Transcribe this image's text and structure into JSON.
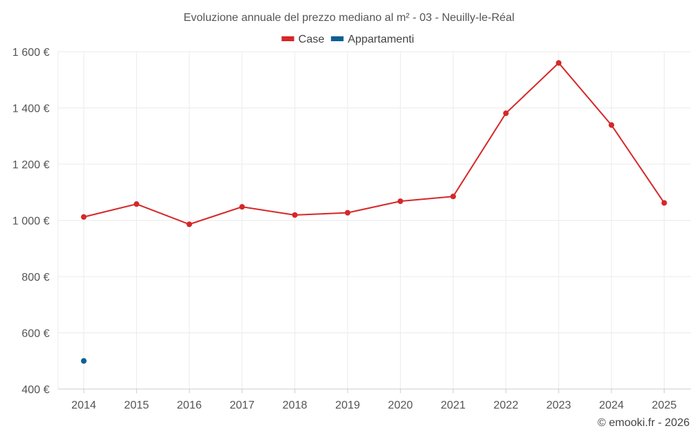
{
  "chart_data": {
    "type": "line",
    "title": "Evoluzione annuale del prezzo mediano al m² - 03 - Neuilly-le-Réal",
    "xlabel": "",
    "ylabel": "",
    "categories": [
      "2014",
      "2015",
      "2016",
      "2017",
      "2018",
      "2019",
      "2020",
      "2021",
      "2022",
      "2023",
      "2024",
      "2025"
    ],
    "ylim": [
      400,
      1600
    ],
    "yticks": [
      400,
      600,
      800,
      1000,
      1200,
      1400,
      1600
    ],
    "ytick_labels": [
      "400 €",
      "600 €",
      "800 €",
      "1 000 €",
      "1 200 €",
      "1 400 €",
      "1 600 €"
    ],
    "grid": true,
    "legend_position": "top-center",
    "series": [
      {
        "name": "Case",
        "color": "#d62728",
        "values": [
          1012,
          1058,
          986,
          1048,
          1019,
          1027,
          1068,
          1085,
          1381,
          1560,
          1339,
          1062
        ]
      },
      {
        "name": "Appartamenti",
        "color": "#0b5f96",
        "values": [
          500,
          null,
          null,
          null,
          null,
          null,
          null,
          null,
          null,
          null,
          null,
          null
        ]
      }
    ]
  },
  "credit": "© emooki.fr - 2026"
}
